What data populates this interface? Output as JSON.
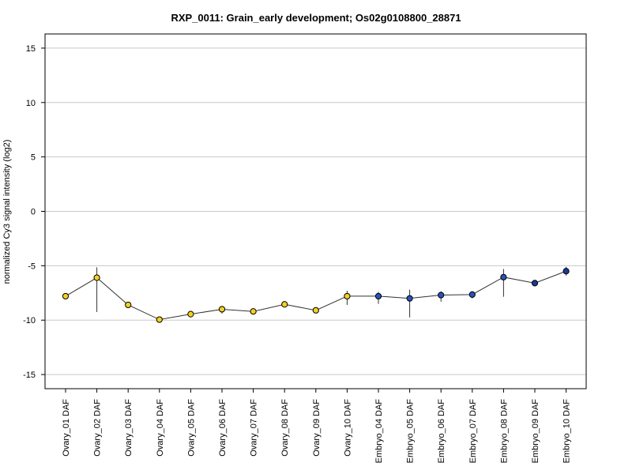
{
  "chart_data": {
    "type": "line",
    "title": "RXP_0011: Grain_early development; Os02g0108800_28871",
    "xlabel": "",
    "ylabel": "normalized Cy3 signal intensity (log2)",
    "ylim": [
      -16.3,
      16.3
    ],
    "yticks": [
      -15,
      -10,
      -5,
      0,
      5,
      10,
      15
    ],
    "grid": true,
    "categories": [
      "Ovary_01 DAF",
      "Ovary_02 DAF",
      "Ovary_03 DAF",
      "Ovary_04 DAF",
      "Ovary_05 DAF",
      "Ovary_06 DAF",
      "Ovary_07 DAF",
      "Ovary_08 DAF",
      "Ovary_09 DAF",
      "Ovary_10 DAF",
      "Embryo_04 DAF",
      "Embryo_05 DAF",
      "Embryo_06 DAF",
      "Embryo_07 DAF",
      "Embryo_08 DAF",
      "Embryo_09 DAF",
      "Embryo_10 DAF"
    ],
    "series": [
      {
        "values": [
          -7.8,
          -6.1,
          -8.6,
          -9.95,
          -9.45,
          -9.0,
          -9.2,
          -8.55,
          -9.1,
          -7.8,
          -7.8,
          -8.0,
          -7.7,
          -7.65,
          -6.05,
          -6.6,
          -5.5
        ],
        "err_low": [
          -7.8,
          -9.25,
          -8.6,
          -9.95,
          -9.65,
          -9.4,
          -9.3,
          -8.65,
          -9.2,
          -8.6,
          -8.5,
          -9.75,
          -8.3,
          -8.0,
          -7.85,
          -6.6,
          -5.9
        ],
        "err_high": [
          -7.8,
          -5.15,
          -8.6,
          -9.95,
          -9.25,
          -8.7,
          -9.1,
          -8.45,
          -9.0,
          -7.3,
          -7.4,
          -7.2,
          -7.35,
          -7.35,
          -5.3,
          -6.6,
          -5.1
        ],
        "colors": [
          "#f5d020",
          "#f5d020",
          "#f5d020",
          "#f5d020",
          "#f5d020",
          "#f5d020",
          "#f5d020",
          "#f5d020",
          "#f5d020",
          "#f5d020",
          "#2a52be",
          "#2a52be",
          "#2a52be",
          "#2a52be",
          "#2a52be",
          "#1a3a9a",
          "#1a3a9a"
        ]
      }
    ]
  }
}
